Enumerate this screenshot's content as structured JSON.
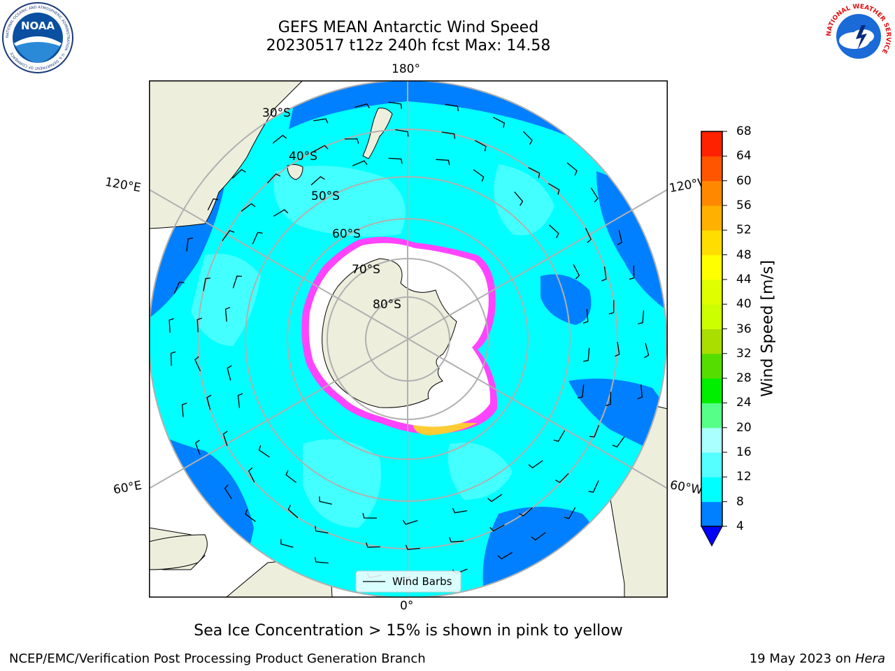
{
  "title": {
    "line1": "GEFS MEAN Antarctic Wind Speed",
    "line2": "20230517 t12z 240h fcst   Max: 14.58"
  },
  "logos": {
    "left": {
      "name": "noaa-logo",
      "text": "NOAA",
      "ring_text": "NATIONAL OCEANIC AND ATMOSPHERIC ADMINISTRATION · U.S. DEPARTMENT OF COMMERCE"
    },
    "right": {
      "name": "nws-logo",
      "ring_text": "NATIONAL WEATHER SERVICE"
    }
  },
  "map": {
    "projection": "south-polar-stereographic",
    "longitude_labels": {
      "top": "180°",
      "left_upper": "120°E",
      "right_upper": "120°W",
      "left_lower": "60°E",
      "right_lower": "60°W",
      "bottom": "0°"
    },
    "latitude_labels": [
      "30°S",
      "40°S",
      "50°S",
      "60°S",
      "70°S",
      "80°S"
    ],
    "legend_label": "Wind Barbs",
    "colors": {
      "ocean_light": "#00ffff",
      "ocean_pale": "#55ffff",
      "ocean_dark": "#0080ff",
      "land": "#eeeedd",
      "ice_white": "#ffffff",
      "ice_pink": "#ff44ff",
      "ice_yellow": "#ffcc33",
      "grid": "#b0b0b0"
    }
  },
  "colorbar": {
    "title": "Wind Speed [m/s]",
    "ticks": [
      "4",
      "8",
      "12",
      "16",
      "20",
      "24",
      "28",
      "32",
      "36",
      "40",
      "44",
      "48",
      "52",
      "56",
      "60",
      "64",
      "68"
    ],
    "colors": [
      "#0080ff",
      "#00ffff",
      "#55ffff",
      "#aaffff",
      "#55ff88",
      "#00ee00",
      "#55dd00",
      "#aadd00",
      "#ccff00",
      "#ddff00",
      "#ffff00",
      "#ffdd00",
      "#ffb000",
      "#ff8800",
      "#ff5500",
      "#ff2200"
    ],
    "extend_color": "#0000ff"
  },
  "note": "Sea Ice Concentration > 15% is shown in pink to yellow",
  "footer": {
    "left": "NCEP/EMC/Verification Post Processing Product Generation Branch",
    "right_prefix": "19 May 2023 on ",
    "right_host": "Hera"
  }
}
